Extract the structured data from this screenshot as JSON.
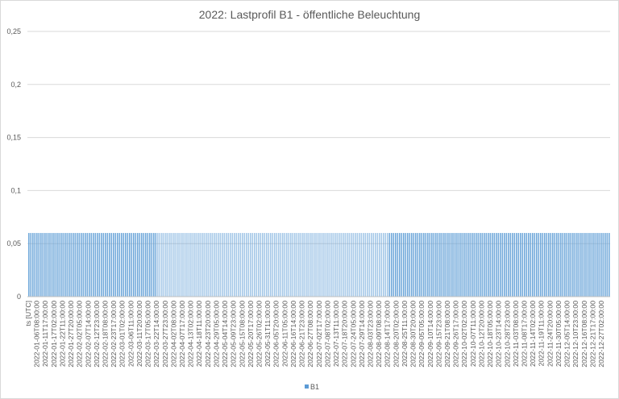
{
  "chart_data": {
    "type": "bar",
    "title": "2022: Lastprofil B1 - öffentliche Beleuchtung",
    "xlabel": "",
    "ylabel": "",
    "ylim": [
      0,
      0.25
    ],
    "yticks": [
      "0",
      "0,05",
      "0,1",
      "0,15",
      "0,2",
      "0,25"
    ],
    "grid": true,
    "legend": "bottom",
    "series": [
      {
        "name": "B1",
        "color": "#5b9bd5",
        "value": 0.06
      }
    ],
    "x_axis_labels": [
      "ts [UTC]",
      "2022-01-06T08:00:00",
      "2022-01-11T17:00:00",
      "2022-01-17T02:00:00",
      "2022-01-22T11:00:00",
      "2022-01-27T20:00:00",
      "2022-02-02T05:00:00",
      "2022-02-07T14:00:00",
      "2022-02-12T23:00:00",
      "2022-02-18T08:00:00",
      "2022-02-23T17:00:00",
      "2022-03-01T02:00:00",
      "2022-03-06T11:00:00",
      "2022-03-11T20:00:00",
      "2022-03-17T05:00:00",
      "2022-03-22T14:00:00",
      "2022-03-27T23:00:00",
      "2022-04-02T08:00:00",
      "2022-04-07T17:00:00",
      "2022-04-13T02:00:00",
      "2022-04-18T11:00:00",
      "2022-04-23T20:00:00",
      "2022-04-29T05:00:00",
      "2022-05-04T14:00:00",
      "2022-05-09T23:00:00",
      "2022-05-15T08:00:00",
      "2022-05-20T17:00:00",
      "2022-05-26T02:00:00",
      "2022-05-31T11:00:00",
      "2022-06-05T20:00:00",
      "2022-06-11T05:00:00",
      "2022-06-16T14:00:00",
      "2022-06-21T23:00:00",
      "2022-06-27T08:00:00",
      "2022-07-02T17:00:00",
      "2022-07-08T02:00:00",
      "2022-07-13T11:00:00",
      "2022-07-18T20:00:00",
      "2022-07-24T05:00:00",
      "2022-07-29T14:00:00",
      "2022-08-03T23:00:00",
      "2022-08-09T08:00:00",
      "2022-08-14T17:00:00",
      "2022-08-20T02:00:00",
      "2022-08-25T11:00:00",
      "2022-08-30T20:00:00",
      "2022-09-05T05:00:00",
      "2022-09-10T14:00:00",
      "2022-09-15T23:00:00",
      "2022-09-21T08:00:00",
      "2022-09-26T17:00:00",
      "2022-10-02T02:00:00",
      "2022-10-07T11:00:00",
      "2022-10-12T20:00:00",
      "2022-10-18T05:00:00",
      "2022-10-23T14:00:00",
      "2022-10-28T23:00:00",
      "2022-11-03T08:00:00",
      "2022-11-08T17:00:00",
      "2022-11-14T02:00:00",
      "2022-11-19T11:00:00",
      "2022-11-24T20:00:00",
      "2022-11-30T05:00:00",
      "2022-12-05T14:00:00",
      "2022-12-10T23:00:00",
      "2022-12-16T08:00:00",
      "2022-12-21T17:00:00",
      "2022-12-27T02:00:00"
    ]
  }
}
